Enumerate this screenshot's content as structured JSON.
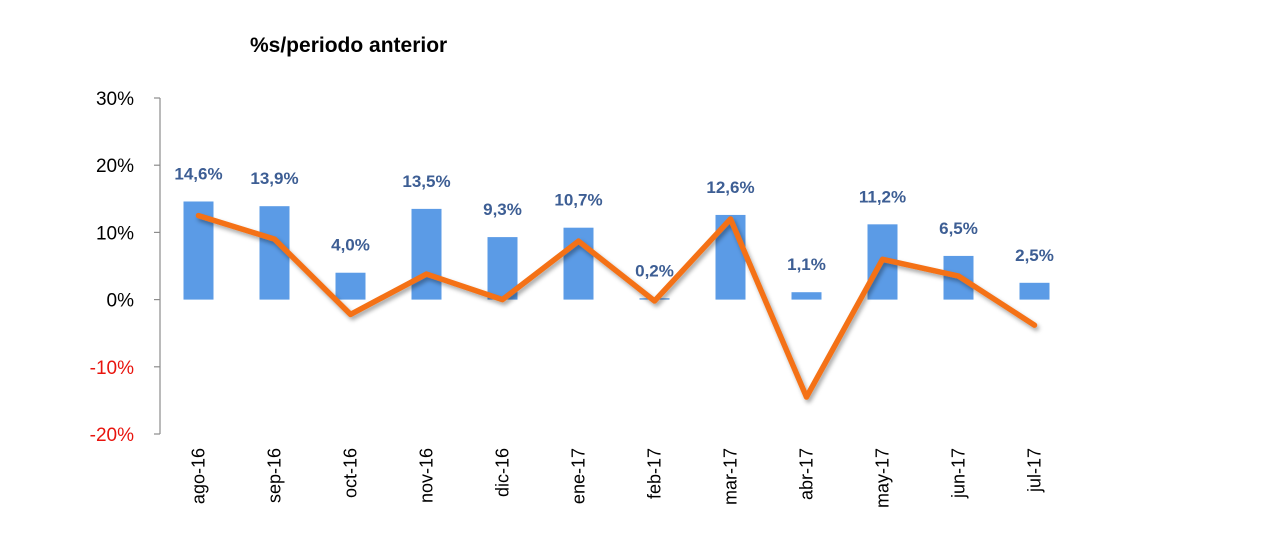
{
  "colors": {
    "bars": "#5b9be6",
    "line": "#f47114",
    "data_labels": "#3d5e94",
    "negative_ticks": "#e8140e",
    "axis": "#8c8c8c",
    "text": "#000000"
  },
  "chart_data": {
    "type": "bar",
    "title": "%s/periodo anterior",
    "xlabel": "",
    "ylabel": "",
    "ylim": [
      -20,
      30
    ],
    "yticks": [
      30,
      20,
      10,
      0,
      -10,
      -20
    ],
    "ytick_labels": [
      "30%",
      "20%",
      "10%",
      "0%",
      "-10%",
      "-20%"
    ],
    "categories": [
      "ago-16",
      "sep-16",
      "oct-16",
      "nov-16",
      "dic-16",
      "ene-17",
      "feb-17",
      "mar-17",
      "abr-17",
      "may-17",
      "jun-17",
      "jul-17"
    ],
    "series": [
      {
        "type": "bar",
        "values": [
          14.6,
          13.9,
          4.0,
          13.5,
          9.3,
          10.7,
          0.2,
          12.6,
          1.1,
          11.2,
          6.5,
          2.5
        ],
        "labels": [
          "14,6%",
          "13,9%",
          "4,0%",
          "13,5%",
          "9,3%",
          "10,7%",
          "0,2%",
          "12,6%",
          "1,1%",
          "11,2%",
          "6,5%",
          "2,5%"
        ]
      },
      {
        "type": "line",
        "values": [
          12.5,
          9.0,
          -2.2,
          3.8,
          0.0,
          8.7,
          -0.2,
          12.0,
          -14.5,
          6.0,
          3.5,
          -3.8
        ]
      }
    ],
    "grid": false,
    "legend": "none"
  }
}
